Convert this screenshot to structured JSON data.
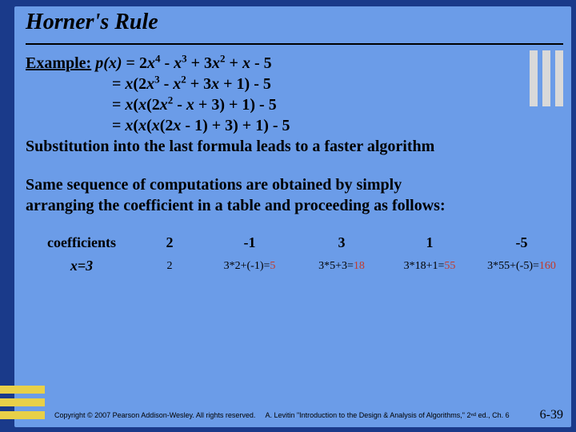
{
  "title": "Horner's Rule",
  "example_label": "Example:",
  "poly_line1_lhs": "p(x) = ",
  "poly_line1_rhs": "2x⁴ - x³ + 3x² + x - 5",
  "poly_line2": "= x(2x³ - x² + 3x + 1) - 5",
  "poly_line3": "= x(x(2x² - x + 3) + 1) - 5",
  "poly_line4": "= x(x(x(2x - 1) + 3) + 1) - 5",
  "subst_text": "Substitution into the last formula leads to a faster algorithm",
  "para2_l1": "Same sequence of computations are obtained by simply",
  "para2_l2": "arranging the coefficient in a table and proceeding as follows:",
  "coef_label": "coefficients",
  "xval_label": "x=3",
  "coefs": [
    "2",
    "-1",
    "3",
    "1",
    "-5"
  ],
  "row2_first": "2",
  "calcs": [
    {
      "expr": "3*2+(-1)=",
      "res": "5"
    },
    {
      "expr": "3*5+3=",
      "res": "18"
    },
    {
      "expr": "3*18+1=",
      "res": "55"
    },
    {
      "expr": "3*55+(-5)=",
      "res": "160"
    }
  ],
  "copyright": "Copyright © 2007 Pearson Addison-Wesley. All rights reserved.",
  "ref": "A. Levitin \"Introduction to the Design & Analysis of Algorithms,\" 2ⁿᵈ ed., Ch. 6",
  "page": "6-39",
  "colors": {
    "bg": "#1a3a8a",
    "slide": "#6b9ce8",
    "bars_tr": "#d9d9d9",
    "bars_bl": "#e8d048",
    "red": "#c23a2a"
  }
}
